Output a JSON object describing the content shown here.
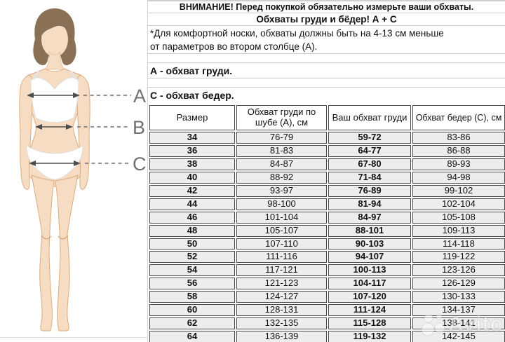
{
  "info_panel": {
    "warning": "ВНИМАНИЕ! Перед покупкой обязательно измерьте ваши обхваты.",
    "subtitle": "Обхваты груди и бёдер! А + С",
    "note_line1": "*Для комфортной носки, обхваты должны быть на 4-13 см меньше",
    "note_line2": "от параметров во втором столбце (А).",
    "legend_a": "А - обхват груди.",
    "legend_c": "С - обхват бедер."
  },
  "figure": {
    "label_a": "A",
    "label_b": "B",
    "label_c": "C",
    "skin_color": "#f6dcc2",
    "hair_color": "#8a7054",
    "outline_color": "#dcab80",
    "arrow_color": "#4d4d4d",
    "label_color": "#707070"
  },
  "table_style": {
    "row_bg": "#ededed",
    "border_color": "#4a4a4a",
    "divider_color": "#cccccc"
  },
  "watermark": {
    "text": "Avito"
  },
  "chart_data": {
    "type": "table",
    "title": "Обхваты груди и бёдер! А + С",
    "headers": [
      "Размер",
      "Обхват груди по шубе (А), см",
      "Ваш обхват груди",
      "Обхват бедер (С), см"
    ],
    "bold_columns": [
      0,
      2
    ],
    "rows": [
      [
        "34",
        "76-79",
        "59-72",
        "83-86"
      ],
      [
        "36",
        "81-83",
        "64-77",
        "86-88"
      ],
      [
        "38",
        "84-87",
        "67-80",
        "89-93"
      ],
      [
        "40",
        "88-92",
        "71-84",
        "94-98"
      ],
      [
        "42",
        "93-97",
        "76-89",
        "99-102"
      ],
      [
        "44",
        "98-100",
        "81-94",
        "102-104"
      ],
      [
        "46",
        "101-104",
        "84-97",
        "105-108"
      ],
      [
        "48",
        "105-107",
        "88-101",
        "109-113"
      ],
      [
        "50",
        "107-110",
        "90-103",
        "114-118"
      ],
      [
        "52",
        "111-116",
        "94-107",
        "119-122"
      ],
      [
        "54",
        "117-121",
        "100-113",
        "123-126"
      ],
      [
        "56",
        "121-123",
        "104-117",
        "126-129"
      ],
      [
        "58",
        "124-127",
        "107-120",
        "130-133"
      ],
      [
        "60",
        "128-131",
        "111-124",
        "134-137"
      ],
      [
        "62",
        "132-135",
        "115-128",
        "138-141"
      ],
      [
        "64",
        "136-139",
        "119-132",
        "142-145"
      ]
    ]
  }
}
